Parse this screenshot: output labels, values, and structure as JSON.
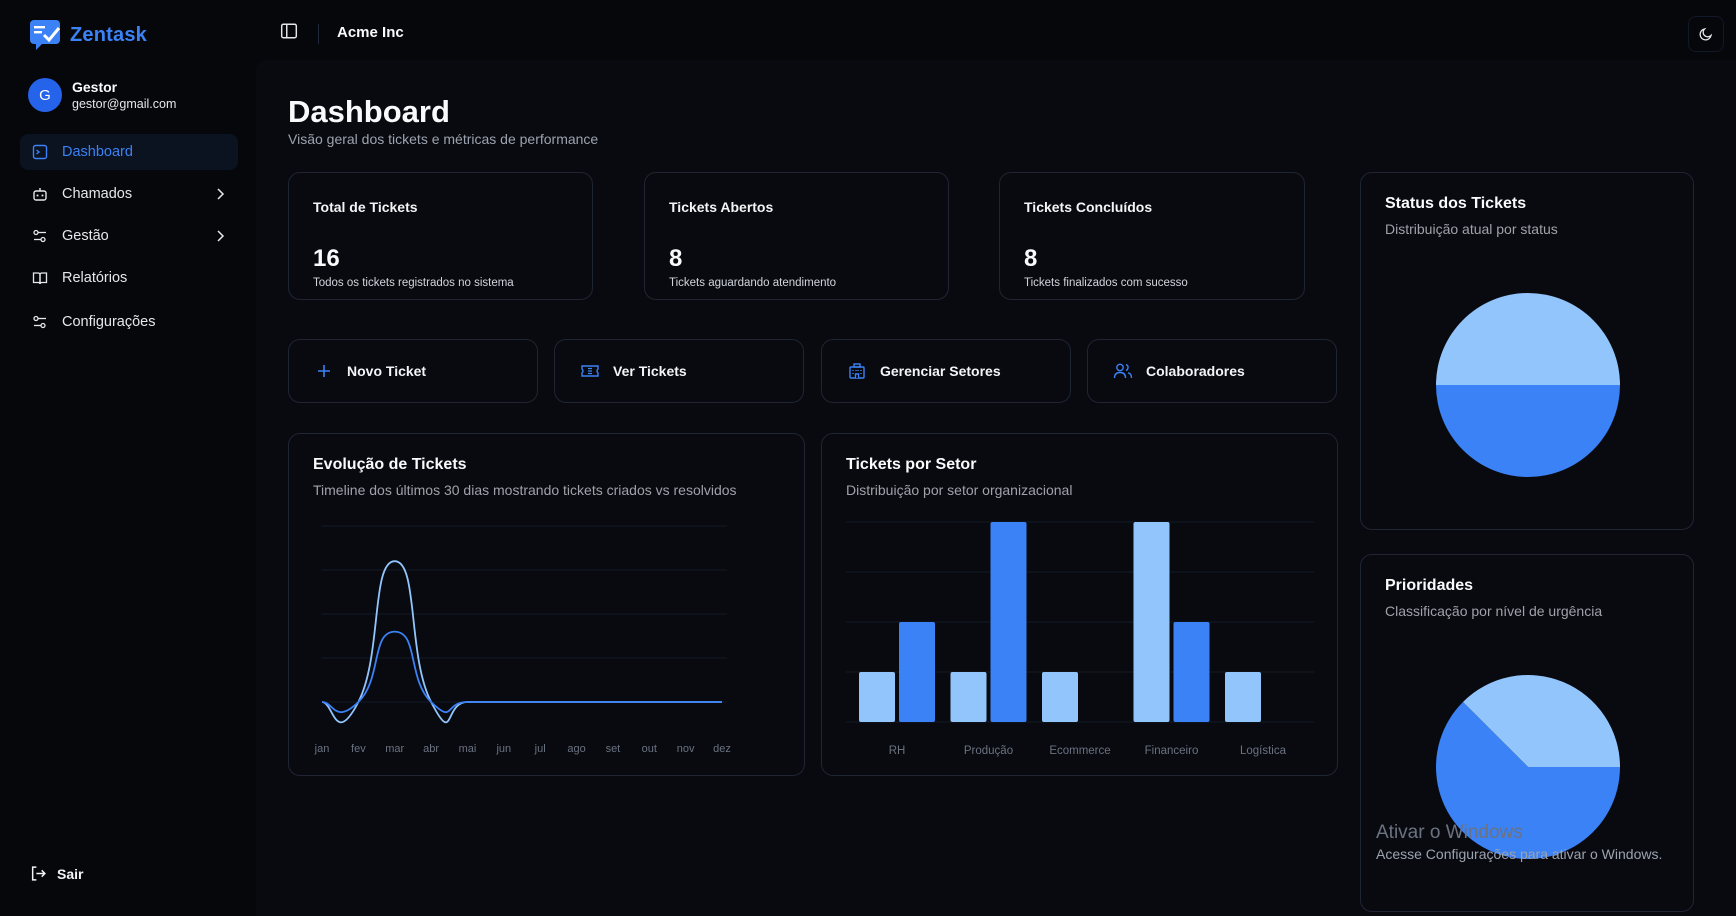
{
  "app": {
    "name": "Zentask",
    "org": "Acme Inc"
  },
  "user": {
    "initial": "G",
    "name": "Gestor",
    "email": "gestor@gmail.com"
  },
  "nav": {
    "items": [
      {
        "label": "Dashboard",
        "icon": "dashboard-icon",
        "active": true
      },
      {
        "label": "Chamados",
        "icon": "robot-icon",
        "expandable": true
      },
      {
        "label": "Gestão",
        "icon": "sliders-icon",
        "expandable": true
      },
      {
        "label": "Relatórios",
        "icon": "book-icon"
      },
      {
        "label": "Configurações",
        "icon": "settings-icon"
      }
    ],
    "logout": "Sair"
  },
  "page": {
    "title": "Dashboard",
    "subtitle": "Visão geral dos tickets e métricas de performance"
  },
  "stats": [
    {
      "title": "Total de Tickets",
      "value": "16",
      "desc": "Todos os tickets registrados no sistema"
    },
    {
      "title": "Tickets Abertos",
      "value": "8",
      "desc": "Tickets aguardando atendimento"
    },
    {
      "title": "Tickets Concluídos",
      "value": "8",
      "desc": "Tickets finalizados com sucesso"
    }
  ],
  "actions": [
    {
      "label": "Novo Ticket",
      "icon": "plus-icon"
    },
    {
      "label": "Ver Tickets",
      "icon": "ticket-icon"
    },
    {
      "label": "Gerenciar Setores",
      "icon": "building-icon"
    },
    {
      "label": "Colaboradores",
      "icon": "users-icon"
    }
  ],
  "evolution": {
    "title": "Evolução de Tickets",
    "subtitle": "Timeline dos últimos 30 dias mostrando tickets criados vs resolvidos"
  },
  "sector": {
    "title": "Tickets por Setor",
    "subtitle": "Distribuição por setor organizacional"
  },
  "status": {
    "title": "Status dos Tickets",
    "subtitle": "Distribuição atual por status"
  },
  "priority": {
    "title": "Prioridades",
    "subtitle": "Classificação por nível de urgência"
  },
  "colors": {
    "accent": "#3b82f6",
    "light": "#93c5fd",
    "dark": "#3b82f6"
  },
  "chart_data": [
    {
      "type": "line",
      "categories": [
        "jan",
        "fev",
        "mar",
        "abr",
        "mai",
        "jun",
        "jul",
        "ago",
        "set",
        "out",
        "nov",
        "dez"
      ],
      "series": [
        {
          "values": [
            0,
            0,
            8,
            0,
            0,
            0,
            0,
            0,
            0,
            0,
            0,
            0
          ]
        },
        {
          "values": [
            0,
            0,
            4,
            0,
            0,
            0,
            0,
            0,
            0,
            0,
            0,
            0
          ]
        }
      ],
      "ylim": [
        0,
        10
      ],
      "grid": true
    },
    {
      "type": "bar",
      "categories": [
        "RH",
        "Produção",
        "Ecommerce",
        "Financeiro",
        "Logística"
      ],
      "series": [
        {
          "values": [
            1,
            1,
            1,
            4,
            1
          ]
        },
        {
          "values": [
            2,
            4,
            0,
            2,
            0
          ]
        }
      ],
      "ylim": [
        0,
        4
      ],
      "grid": true
    },
    {
      "type": "pie",
      "values": [
        8,
        8
      ]
    },
    {
      "type": "pie",
      "values": [
        6,
        10
      ]
    }
  ],
  "watermark": {
    "line1": "Ativar o Windows",
    "line2": "Acesse Configurações para ativar o Windows."
  }
}
